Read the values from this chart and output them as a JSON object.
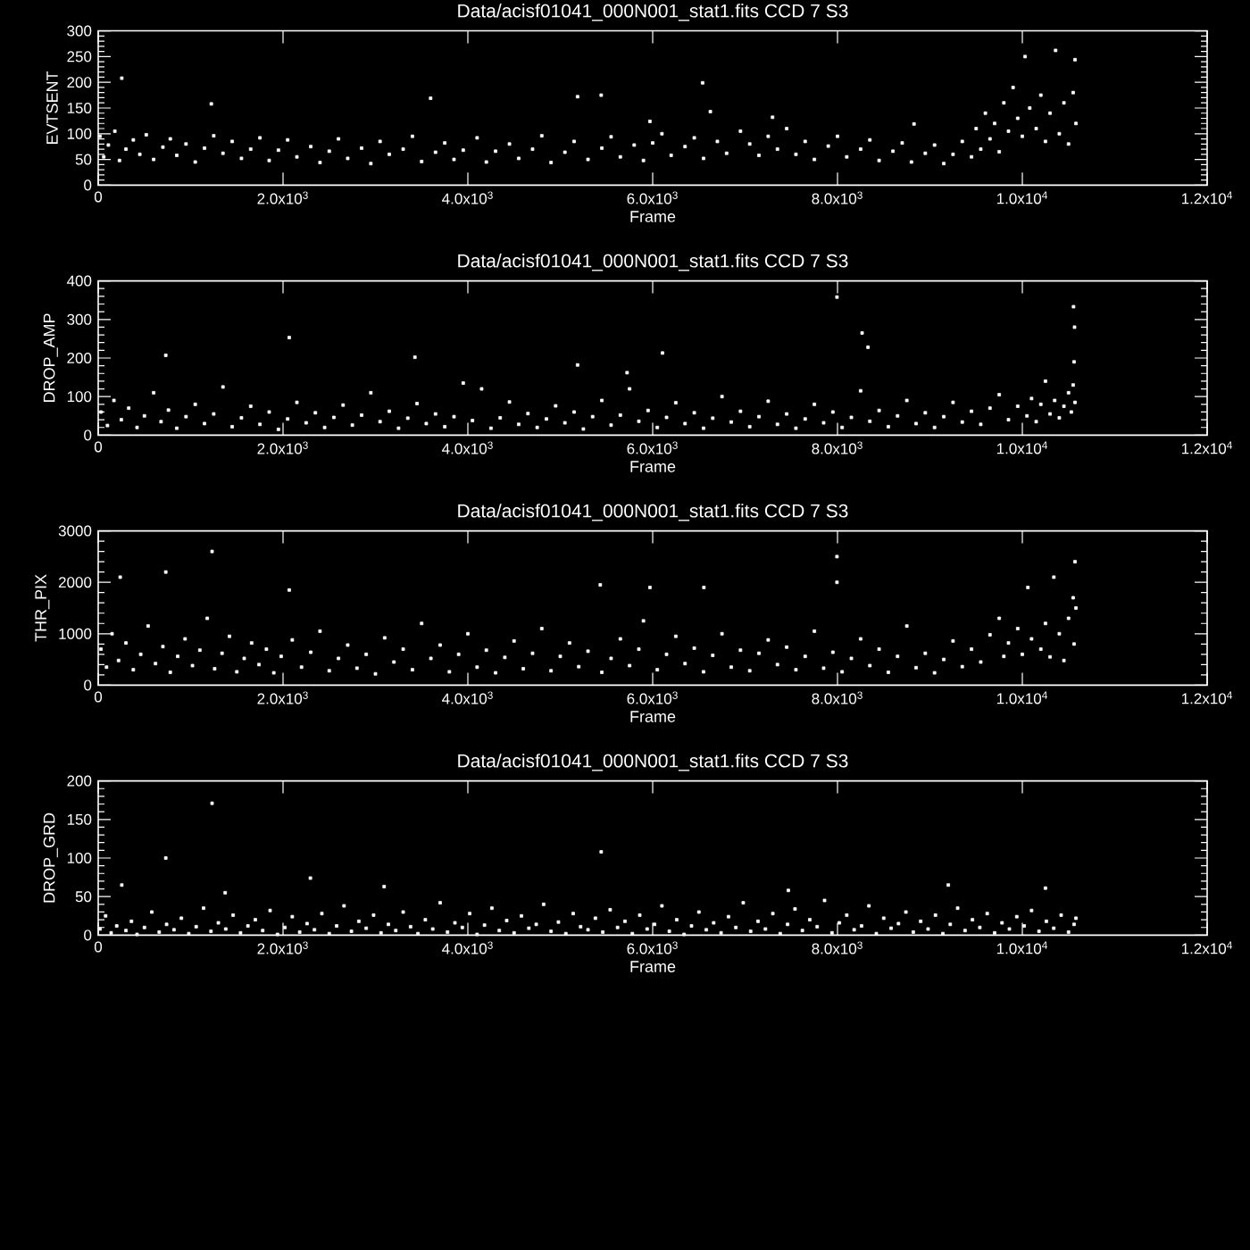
{
  "chart_data": [
    {
      "type": "scatter",
      "title": "Data/acisf01041_000N001_stat1.fits CCD 7 S3",
      "xlabel": "Frame",
      "ylabel": "EVTSENT",
      "color": "#ffffff",
      "marker": "square",
      "xlim": [
        0,
        12000
      ],
      "xticks": [
        0,
        {
          "value": 2000,
          "label": "2.0x10$^{3}$"
        },
        {
          "value": 4000,
          "label": "4.0x10$^{3}$"
        },
        {
          "value": 6000,
          "label": "6.0x10$^{3}$"
        },
        {
          "value": 8000,
          "label": "8.0x10$^{3}$"
        },
        {
          "value": 10000,
          "label": "1.0x10$^{4}$"
        },
        {
          "value": 12000,
          "label": "1.2x10$^{4}$"
        }
      ],
      "ylim": [
        0,
        300
      ],
      "yticks": [
        0,
        50,
        100,
        150,
        200,
        250,
        300
      ],
      "x": [
        20,
        60,
        110,
        180,
        230,
        255,
        300,
        380,
        450,
        520,
        600,
        700,
        780,
        850,
        950,
        1050,
        1150,
        1224,
        1250,
        1350,
        1450,
        1550,
        1650,
        1750,
        1850,
        1950,
        2050,
        2150,
        2300,
        2400,
        2500,
        2600,
        2700,
        2850,
        2950,
        3050,
        3150,
        3300,
        3400,
        3500,
        3597,
        3650,
        3750,
        3850,
        3950,
        4100,
        4200,
        4300,
        4450,
        4550,
        4700,
        4800,
        4900,
        5050,
        5150,
        5187,
        5300,
        5443,
        5450,
        5550,
        5650,
        5800,
        5900,
        5970,
        6000,
        6100,
        6200,
        6350,
        6450,
        6540,
        6550,
        6624,
        6700,
        6800,
        6950,
        7050,
        7150,
        7250,
        7297,
        7350,
        7450,
        7550,
        7650,
        7750,
        7900,
        8000,
        8100,
        8250,
        8350,
        8450,
        8600,
        8700,
        8800,
        8828,
        8950,
        9050,
        9150,
        9250,
        9350,
        9450,
        9500,
        9550,
        9600,
        9650,
        9700,
        9750,
        9800,
        9850,
        9900,
        9950,
        10000,
        10030,
        10080,
        10150,
        10200,
        10250,
        10300,
        10360,
        10400,
        10450,
        10500,
        10550,
        10570,
        10580
      ],
      "values": [
        95,
        55,
        78,
        105,
        48,
        208,
        70,
        88,
        60,
        98,
        50,
        74,
        90,
        58,
        80,
        45,
        72,
        158,
        96,
        62,
        85,
        52,
        70,
        92,
        48,
        68,
        88,
        55,
        75,
        44,
        66,
        90,
        52,
        72,
        42,
        85,
        60,
        70,
        95,
        46,
        169,
        64,
        82,
        50,
        68,
        92,
        45,
        66,
        80,
        52,
        70,
        96,
        44,
        64,
        85,
        172,
        50,
        175,
        72,
        94,
        55,
        78,
        48,
        124,
        82,
        100,
        58,
        75,
        92,
        199,
        52,
        143,
        85,
        62,
        105,
        80,
        58,
        95,
        132,
        70,
        110,
        60,
        85,
        50,
        76,
        95,
        55,
        70,
        88,
        48,
        66,
        82,
        45,
        119,
        62,
        78,
        42,
        60,
        85,
        55,
        110,
        70,
        140,
        90,
        120,
        65,
        160,
        105,
        190,
        130,
        95,
        250,
        150,
        110,
        175,
        85,
        140,
        262,
        100,
        160,
        80,
        180,
        244,
        120
      ]
    },
    {
      "type": "scatter",
      "title": "Data/acisf01041_000N001_stat1.fits CCD 7 S3",
      "xlabel": "Frame",
      "ylabel": "DROP_AMP",
      "color": "#ffffff",
      "marker": "square",
      "xlim": [
        0,
        12000
      ],
      "xticks": [
        0,
        {
          "value": 2000,
          "label": "2.0x10$^{3}$"
        },
        {
          "value": 4000,
          "label": "4.0x10$^{3}$"
        },
        {
          "value": 6000,
          "label": "6.0x10$^{3}$"
        },
        {
          "value": 8000,
          "label": "8.0x10$^{3}$"
        },
        {
          "value": 10000,
          "label": "1.0x10$^{4}$"
        },
        {
          "value": 12000,
          "label": "1.2x10$^{4}$"
        }
      ],
      "ylim": [
        0,
        400
      ],
      "yticks": [
        0,
        100,
        200,
        300,
        400
      ],
      "x": [
        30,
        100,
        170,
        250,
        330,
        420,
        500,
        600,
        680,
        731,
        760,
        850,
        950,
        1050,
        1150,
        1250,
        1350,
        1450,
        1550,
        1650,
        1750,
        1850,
        1950,
        2050,
        2067,
        2150,
        2250,
        2350,
        2450,
        2550,
        2650,
        2750,
        2850,
        2950,
        3050,
        3150,
        3250,
        3350,
        3427,
        3450,
        3550,
        3650,
        3750,
        3850,
        3950,
        4050,
        4149,
        4250,
        4350,
        4450,
        4550,
        4650,
        4750,
        4850,
        4950,
        5050,
        5150,
        5187,
        5250,
        5350,
        5450,
        5550,
        5650,
        5723,
        5750,
        5850,
        5950,
        6050,
        6106,
        6150,
        6250,
        6350,
        6450,
        6550,
        6650,
        6750,
        6850,
        6950,
        7050,
        7150,
        7250,
        7350,
        7450,
        7550,
        7650,
        7750,
        7850,
        7950,
        7994,
        8050,
        8150,
        8250,
        8266,
        8330,
        8350,
        8450,
        8550,
        8650,
        8750,
        8850,
        8950,
        9050,
        9150,
        9250,
        9350,
        9450,
        9550,
        9650,
        9750,
        9850,
        9950,
        10050,
        10100,
        10150,
        10200,
        10250,
        10300,
        10350,
        10400,
        10450,
        10500,
        10530,
        10550,
        10554,
        10560,
        10565,
        10570
      ],
      "values": [
        60,
        25,
        90,
        40,
        70,
        20,
        50,
        110,
        35,
        207,
        65,
        18,
        48,
        80,
        30,
        55,
        125,
        22,
        45,
        75,
        28,
        60,
        15,
        42,
        253,
        85,
        32,
        58,
        20,
        46,
        78,
        26,
        52,
        110,
        35,
        62,
        18,
        44,
        202,
        82,
        30,
        55,
        22,
        48,
        135,
        38,
        120,
        18,
        45,
        86,
        28,
        56,
        20,
        42,
        76,
        32,
        60,
        182,
        16,
        48,
        90,
        26,
        52,
        162,
        120,
        36,
        64,
        20,
        213,
        46,
        84,
        30,
        58,
        18,
        44,
        100,
        34,
        62,
        22,
        48,
        88,
        28,
        55,
        18,
        42,
        80,
        32,
        60,
        358,
        20,
        46,
        115,
        265,
        228,
        36,
        64,
        22,
        50,
        90,
        30,
        58,
        20,
        48,
        85,
        34,
        62,
        28,
        70,
        105,
        40,
        75,
        50,
        95,
        35,
        80,
        140,
        55,
        90,
        45,
        75,
        110,
        60,
        130,
        333,
        190,
        280,
        85
      ]
    },
    {
      "type": "scatter",
      "title": "Data/acisf01041_000N001_stat1.fits CCD 7 S3",
      "xlabel": "Frame",
      "ylabel": "THR_PIX",
      "color": "#ffffff",
      "marker": "square",
      "xlim": [
        0,
        12000
      ],
      "xticks": [
        0,
        {
          "value": 2000,
          "label": "2.0x10$^{3}$"
        },
        {
          "value": 4000,
          "label": "4.0x10$^{3}$"
        },
        {
          "value": 6000,
          "label": "6.0x10$^{3}$"
        },
        {
          "value": 8000,
          "label": "8.0x10$^{3}$"
        },
        {
          "value": 10000,
          "label": "1.0x10$^{4}$"
        },
        {
          "value": 12000,
          "label": "1.2x10$^{4}$"
        }
      ],
      "ylim": [
        0,
        3000
      ],
      "yticks": [
        0,
        1000,
        2000,
        3000
      ],
      "x": [
        30,
        90,
        150,
        220,
        238,
        300,
        380,
        460,
        540,
        620,
        700,
        731,
        780,
        860,
        940,
        1020,
        1100,
        1180,
        1232,
        1260,
        1340,
        1420,
        1500,
        1580,
        1660,
        1740,
        1820,
        1900,
        1980,
        2067,
        2100,
        2200,
        2300,
        2400,
        2500,
        2600,
        2700,
        2800,
        2900,
        3000,
        3100,
        3200,
        3300,
        3400,
        3500,
        3600,
        3700,
        3800,
        3900,
        4000,
        4100,
        4200,
        4300,
        4400,
        4500,
        4600,
        4700,
        4800,
        4900,
        5000,
        5100,
        5200,
        5300,
        5433,
        5450,
        5550,
        5650,
        5750,
        5850,
        5900,
        5970,
        6050,
        6150,
        6250,
        6350,
        6450,
        6550,
        6554,
        6650,
        6750,
        6850,
        6950,
        7050,
        7150,
        7250,
        7350,
        7450,
        7550,
        7650,
        7750,
        7850,
        7950,
        7994,
        7994,
        8050,
        8150,
        8250,
        8350,
        8450,
        8550,
        8650,
        8750,
        8850,
        8950,
        9050,
        9150,
        9250,
        9350,
        9450,
        9550,
        9650,
        9750,
        9800,
        9850,
        9950,
        10000,
        10060,
        10100,
        10200,
        10250,
        10300,
        10341,
        10400,
        10450,
        10500,
        10550,
        10560,
        10570,
        10580
      ],
      "values": [
        700,
        350,
        1000,
        480,
        2100,
        820,
        300,
        600,
        1150,
        420,
        750,
        2200,
        250,
        560,
        900,
        380,
        680,
        1300,
        2600,
        320,
        620,
        950,
        260,
        520,
        820,
        400,
        700,
        240,
        560,
        1850,
        880,
        350,
        640,
        1050,
        280,
        520,
        780,
        330,
        600,
        220,
        920,
        450,
        700,
        300,
        1200,
        520,
        780,
        260,
        600,
        1000,
        350,
        680,
        240,
        540,
        860,
        320,
        620,
        1100,
        280,
        560,
        820,
        360,
        660,
        1950,
        250,
        520,
        900,
        380,
        700,
        1250,
        1900,
        300,
        600,
        950,
        420,
        720,
        260,
        1900,
        580,
        1000,
        350,
        680,
        280,
        620,
        880,
        400,
        740,
        300,
        560,
        1050,
        330,
        640,
        2500,
        2000,
        260,
        520,
        900,
        380,
        700,
        250,
        560,
        1150,
        340,
        620,
        240,
        500,
        860,
        360,
        700,
        450,
        980,
        1300,
        560,
        820,
        1100,
        600,
        1900,
        900,
        700,
        1200,
        550,
        2100,
        1000,
        480,
        1300,
        1700,
        800,
        2400,
        1500
      ]
    },
    {
      "type": "scatter",
      "title": "Data/acisf01041_000N001_stat1.fits CCD 7 S3",
      "xlabel": "Frame",
      "ylabel": "DROP_GRD",
      "color": "#ffffff",
      "marker": "square",
      "xlim": [
        0,
        12000
      ],
      "xticks": [
        0,
        {
          "value": 2000,
          "label": "2.0x10$^{3}$"
        },
        {
          "value": 4000,
          "label": "4.0x10$^{3}$"
        },
        {
          "value": 6000,
          "label": "6.0x10$^{3}$"
        },
        {
          "value": 8000,
          "label": "8.0x10$^{3}$"
        },
        {
          "value": 10000,
          "label": "1.0x10$^{4}$"
        },
        {
          "value": 12000,
          "label": "1.2x10$^{4}$"
        }
      ],
      "ylim": [
        0,
        200
      ],
      "yticks": [
        0,
        50,
        100,
        150,
        200
      ],
      "x": [
        20,
        80,
        140,
        200,
        255,
        300,
        360,
        420,
        500,
        580,
        660,
        731,
        740,
        820,
        900,
        980,
        1060,
        1140,
        1220,
        1232,
        1300,
        1374,
        1380,
        1460,
        1540,
        1620,
        1700,
        1780,
        1860,
        1940,
        2020,
        2100,
        2180,
        2260,
        2296,
        2340,
        2420,
        2500,
        2580,
        2660,
        2740,
        2820,
        2900,
        2980,
        3060,
        3094,
        3140,
        3220,
        3300,
        3380,
        3460,
        3540,
        3620,
        3700,
        3780,
        3860,
        3940,
        4020,
        4100,
        4180,
        4260,
        4340,
        4420,
        4500,
        4580,
        4660,
        4740,
        4820,
        4900,
        4980,
        5060,
        5140,
        5220,
        5300,
        5380,
        5443,
        5460,
        5540,
        5620,
        5700,
        5780,
        5860,
        5940,
        6020,
        6100,
        6180,
        6260,
        6340,
        6420,
        6500,
        6580,
        6660,
        6740,
        6820,
        6900,
        6980,
        7060,
        7140,
        7220,
        7300,
        7380,
        7460,
        7468,
        7540,
        7620,
        7700,
        7780,
        7860,
        7940,
        8020,
        8100,
        8180,
        8260,
        8340,
        8420,
        8500,
        8580,
        8660,
        8740,
        8820,
        8900,
        8980,
        9060,
        9140,
        9199,
        9220,
        9300,
        9380,
        9460,
        9540,
        9620,
        9700,
        9780,
        9860,
        9940,
        10020,
        10100,
        10180,
        10250,
        10260,
        10340,
        10420,
        10500,
        10560,
        10580
      ],
      "values": [
        8,
        25,
        3,
        12,
        65,
        6,
        18,
        1,
        10,
        30,
        4,
        100,
        14,
        7,
        22,
        2,
        11,
        35,
        5,
        171,
        16,
        55,
        8,
        26,
        3,
        12,
        20,
        6,
        32,
        1,
        10,
        24,
        4,
        15,
        74,
        7,
        28,
        2,
        12,
        38,
        5,
        18,
        9,
        26,
        3,
        63,
        14,
        6,
        30,
        11,
        2,
        20,
        8,
        42,
        4,
        16,
        10,
        28,
        1,
        13,
        35,
        6,
        19,
        3,
        25,
        9,
        14,
        40,
        5,
        17,
        2,
        28,
        11,
        7,
        22,
        108,
        4,
        33,
        10,
        18,
        2,
        26,
        8,
        14,
        38,
        5,
        20,
        1,
        12,
        30,
        7,
        16,
        3,
        24,
        10,
        42,
        5,
        18,
        8,
        28,
        2,
        14,
        58,
        34,
        6,
        20,
        11,
        45,
        3,
        16,
        26,
        7,
        12,
        38,
        2,
        22,
        9,
        15,
        30,
        4,
        18,
        8,
        26,
        2,
        65,
        14,
        35,
        6,
        20,
        10,
        28,
        3,
        16,
        8,
        24,
        12,
        32,
        5,
        61,
        18,
        9,
        26,
        4,
        14,
        22
      ]
    }
  ]
}
